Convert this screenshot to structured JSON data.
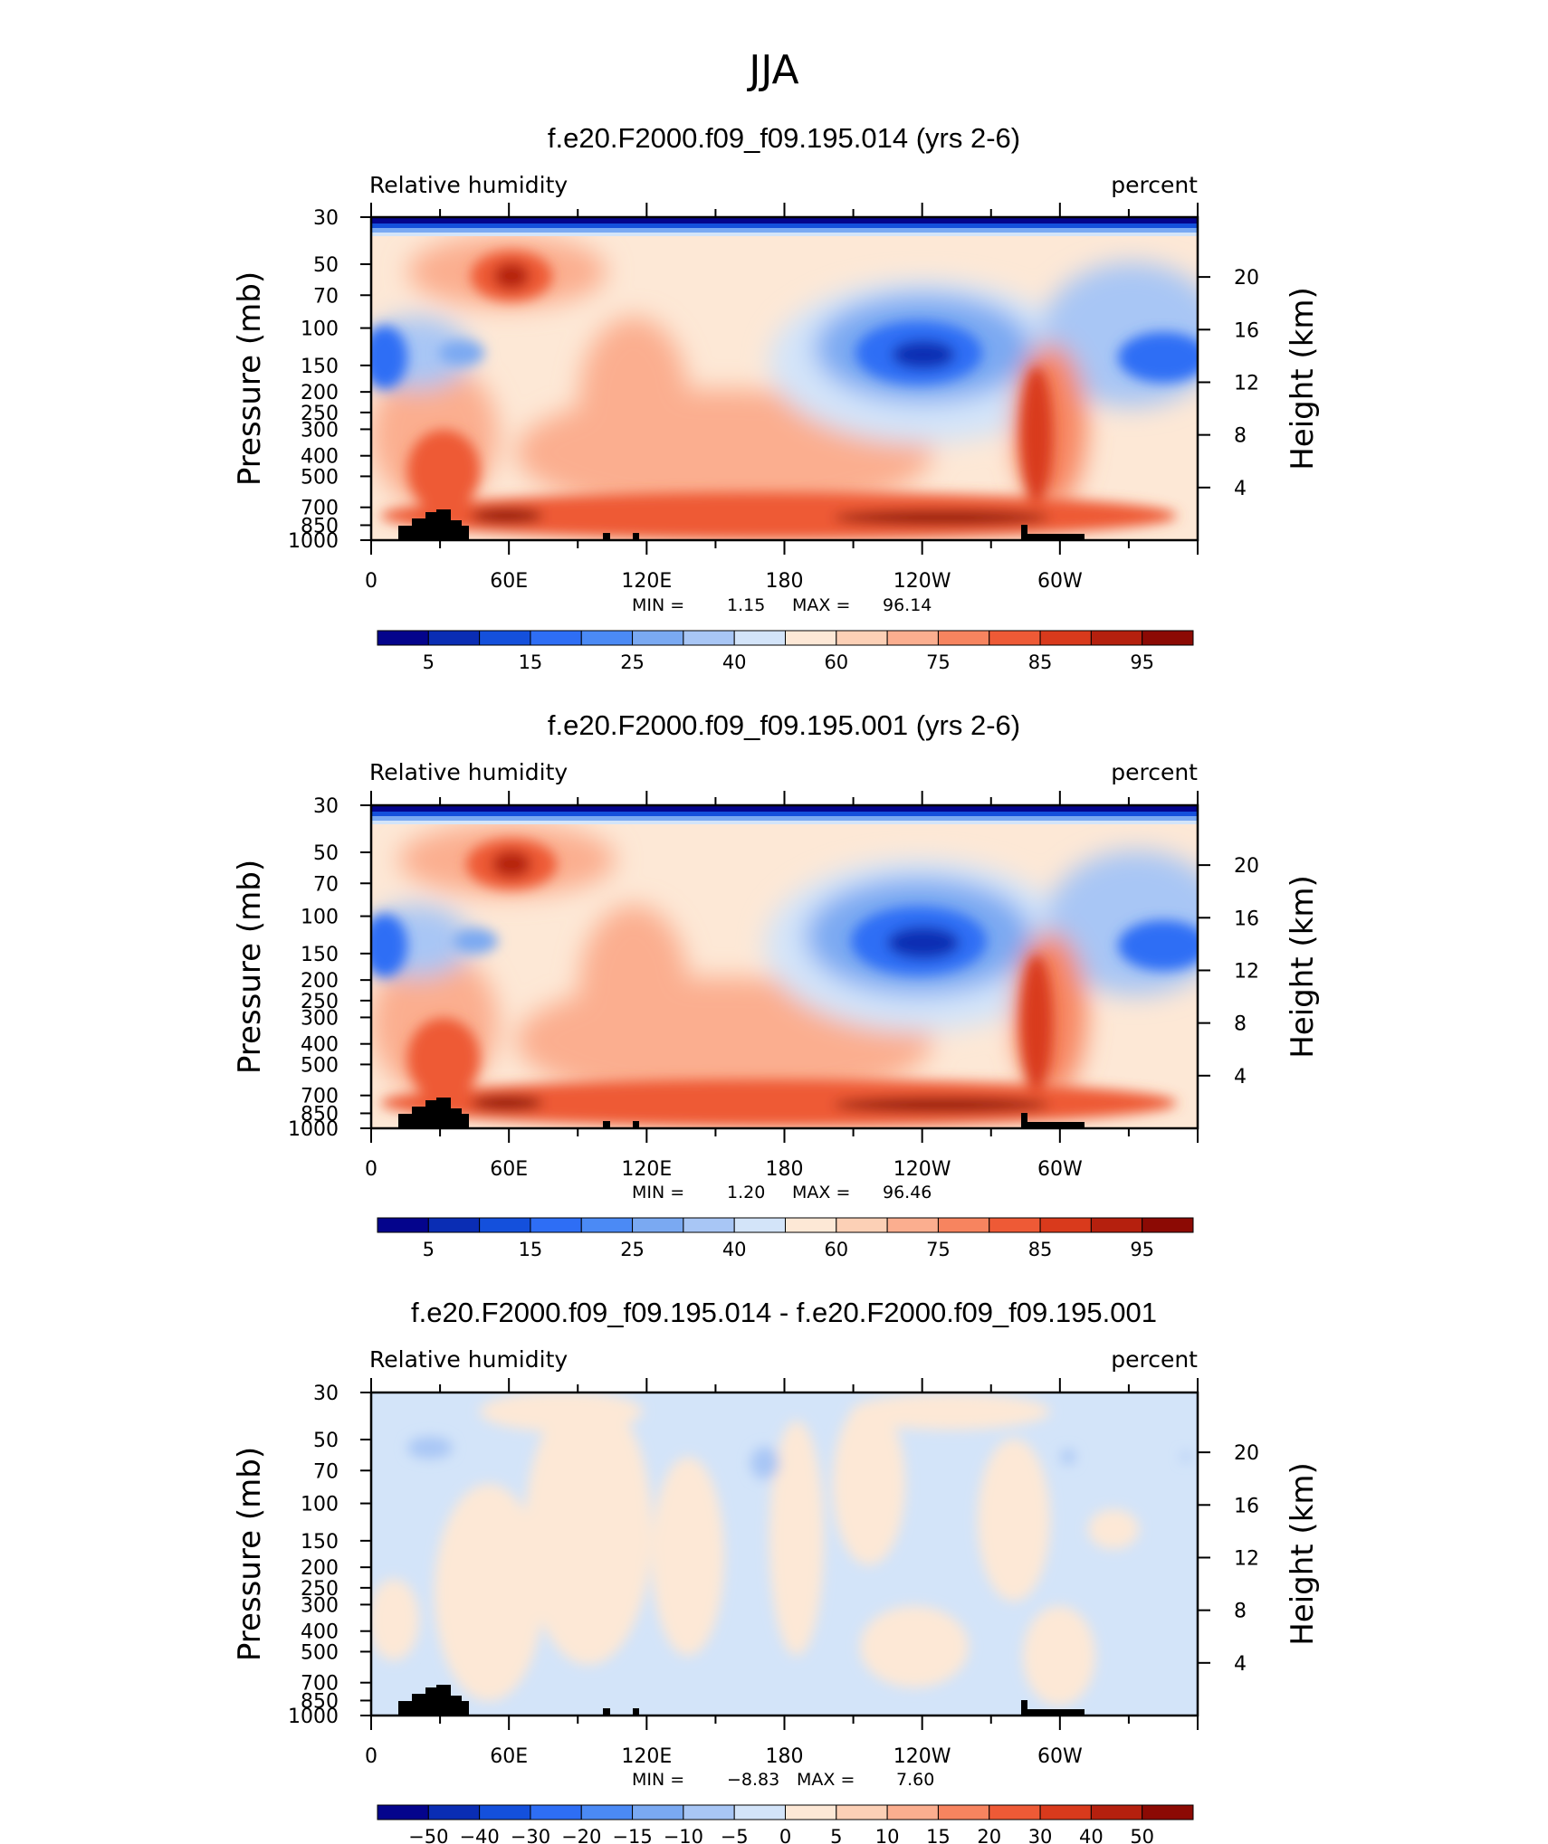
{
  "figure": {
    "title": "JJA"
  },
  "chart_data": [
    {
      "type": "heatmap",
      "title": "f.e20.F2000.f09_f09.195.014 (yrs 2-6)",
      "variable": "Relative humidity",
      "units": "percent",
      "ylabel": "Pressure (mb)",
      "ylabel_right": "Height (km)",
      "x_ticks": [
        "0",
        "60E",
        "120E",
        "180",
        "120W",
        "60W"
      ],
      "y_ticks": [
        "30",
        "50",
        "70",
        "100",
        "150",
        "200",
        "250",
        "300",
        "400",
        "500",
        "700",
        "850",
        "1000"
      ],
      "y_ticks_right": [
        "20",
        "16",
        "12",
        "8",
        "4"
      ],
      "min_label": "MIN =",
      "min_value": "1.15",
      "max_label": "MAX =",
      "max_value": "96.14",
      "colorbar": {
        "labels": [
          "5",
          "15",
          "25",
          "40",
          "60",
          "75",
          "85",
          "95"
        ],
        "colors": [
          "#04048c",
          "#0a2db4",
          "#1450dc",
          "#2e6ef5",
          "#4b8af5",
          "#7aa9f2",
          "#a8c6f5",
          "#d3e4f9",
          "#fde8d6",
          "#fcd0b6",
          "#fbae8f",
          "#f7845f",
          "#ee5a36",
          "#d93a1c",
          "#b5200e",
          "#8c0a04"
        ]
      },
      "y_range_mb": [
        1000,
        30
      ],
      "x_range_deg_east": [
        0,
        360
      ]
    },
    {
      "type": "heatmap",
      "title": "f.e20.F2000.f09_f09.195.001 (yrs 2-6)",
      "variable": "Relative humidity",
      "units": "percent",
      "ylabel": "Pressure (mb)",
      "ylabel_right": "Height (km)",
      "x_ticks": [
        "0",
        "60E",
        "120E",
        "180",
        "120W",
        "60W"
      ],
      "y_ticks": [
        "30",
        "50",
        "70",
        "100",
        "150",
        "200",
        "250",
        "300",
        "400",
        "500",
        "700",
        "850",
        "1000"
      ],
      "y_ticks_right": [
        "20",
        "16",
        "12",
        "8",
        "4"
      ],
      "min_label": "MIN =",
      "min_value": "1.20",
      "max_label": "MAX =",
      "max_value": "96.46",
      "colorbar": {
        "labels": [
          "5",
          "15",
          "25",
          "40",
          "60",
          "75",
          "85",
          "95"
        ],
        "colors": [
          "#04048c",
          "#0a2db4",
          "#1450dc",
          "#2e6ef5",
          "#4b8af5",
          "#7aa9f2",
          "#a8c6f5",
          "#d3e4f9",
          "#fde8d6",
          "#fcd0b6",
          "#fbae8f",
          "#f7845f",
          "#ee5a36",
          "#d93a1c",
          "#b5200e",
          "#8c0a04"
        ]
      },
      "y_range_mb": [
        1000,
        30
      ],
      "x_range_deg_east": [
        0,
        360
      ]
    },
    {
      "type": "heatmap",
      "title": "f.e20.F2000.f09_f09.195.014 - f.e20.F2000.f09_f09.195.001",
      "variable": "Relative humidity",
      "units": "percent",
      "ylabel": "Pressure (mb)",
      "ylabel_right": "Height (km)",
      "x_ticks": [
        "0",
        "60E",
        "120E",
        "180",
        "120W",
        "60W"
      ],
      "y_ticks": [
        "30",
        "50",
        "70",
        "100",
        "150",
        "200",
        "250",
        "300",
        "400",
        "500",
        "700",
        "850",
        "1000"
      ],
      "y_ticks_right": [
        "20",
        "16",
        "12",
        "8",
        "4"
      ],
      "min_label": "MIN =",
      "min_value": "−8.83",
      "max_label": "MAX =",
      "max_value": "7.60",
      "colorbar": {
        "labels": [
          "−50",
          "−40",
          "−30",
          "−20",
          "−15",
          "−10",
          "−5",
          "0",
          "5",
          "10",
          "15",
          "20",
          "30",
          "40",
          "50"
        ],
        "colors": [
          "#04048c",
          "#0a2db4",
          "#1450dc",
          "#2e6ef5",
          "#4b8af5",
          "#7aa9f2",
          "#a8c6f5",
          "#d3e4f9",
          "#fde8d6",
          "#fcd0b6",
          "#fbae8f",
          "#f7845f",
          "#ee5a36",
          "#d93a1c",
          "#b5200e",
          "#8c0a04"
        ]
      },
      "y_range_mb": [
        1000,
        30
      ],
      "x_range_deg_east": [
        0,
        360
      ]
    }
  ]
}
